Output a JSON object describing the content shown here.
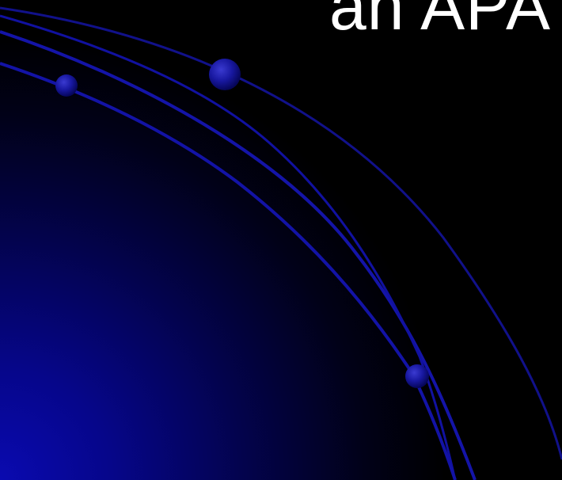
{
  "slide": {
    "title": "an APA"
  },
  "colors": {
    "background": "#000000",
    "gradient_glow": "#0a0ab0",
    "arc_stroke": "#1010a0",
    "orb_fill": "#1a1a9a",
    "title_text": "#ffffff"
  }
}
